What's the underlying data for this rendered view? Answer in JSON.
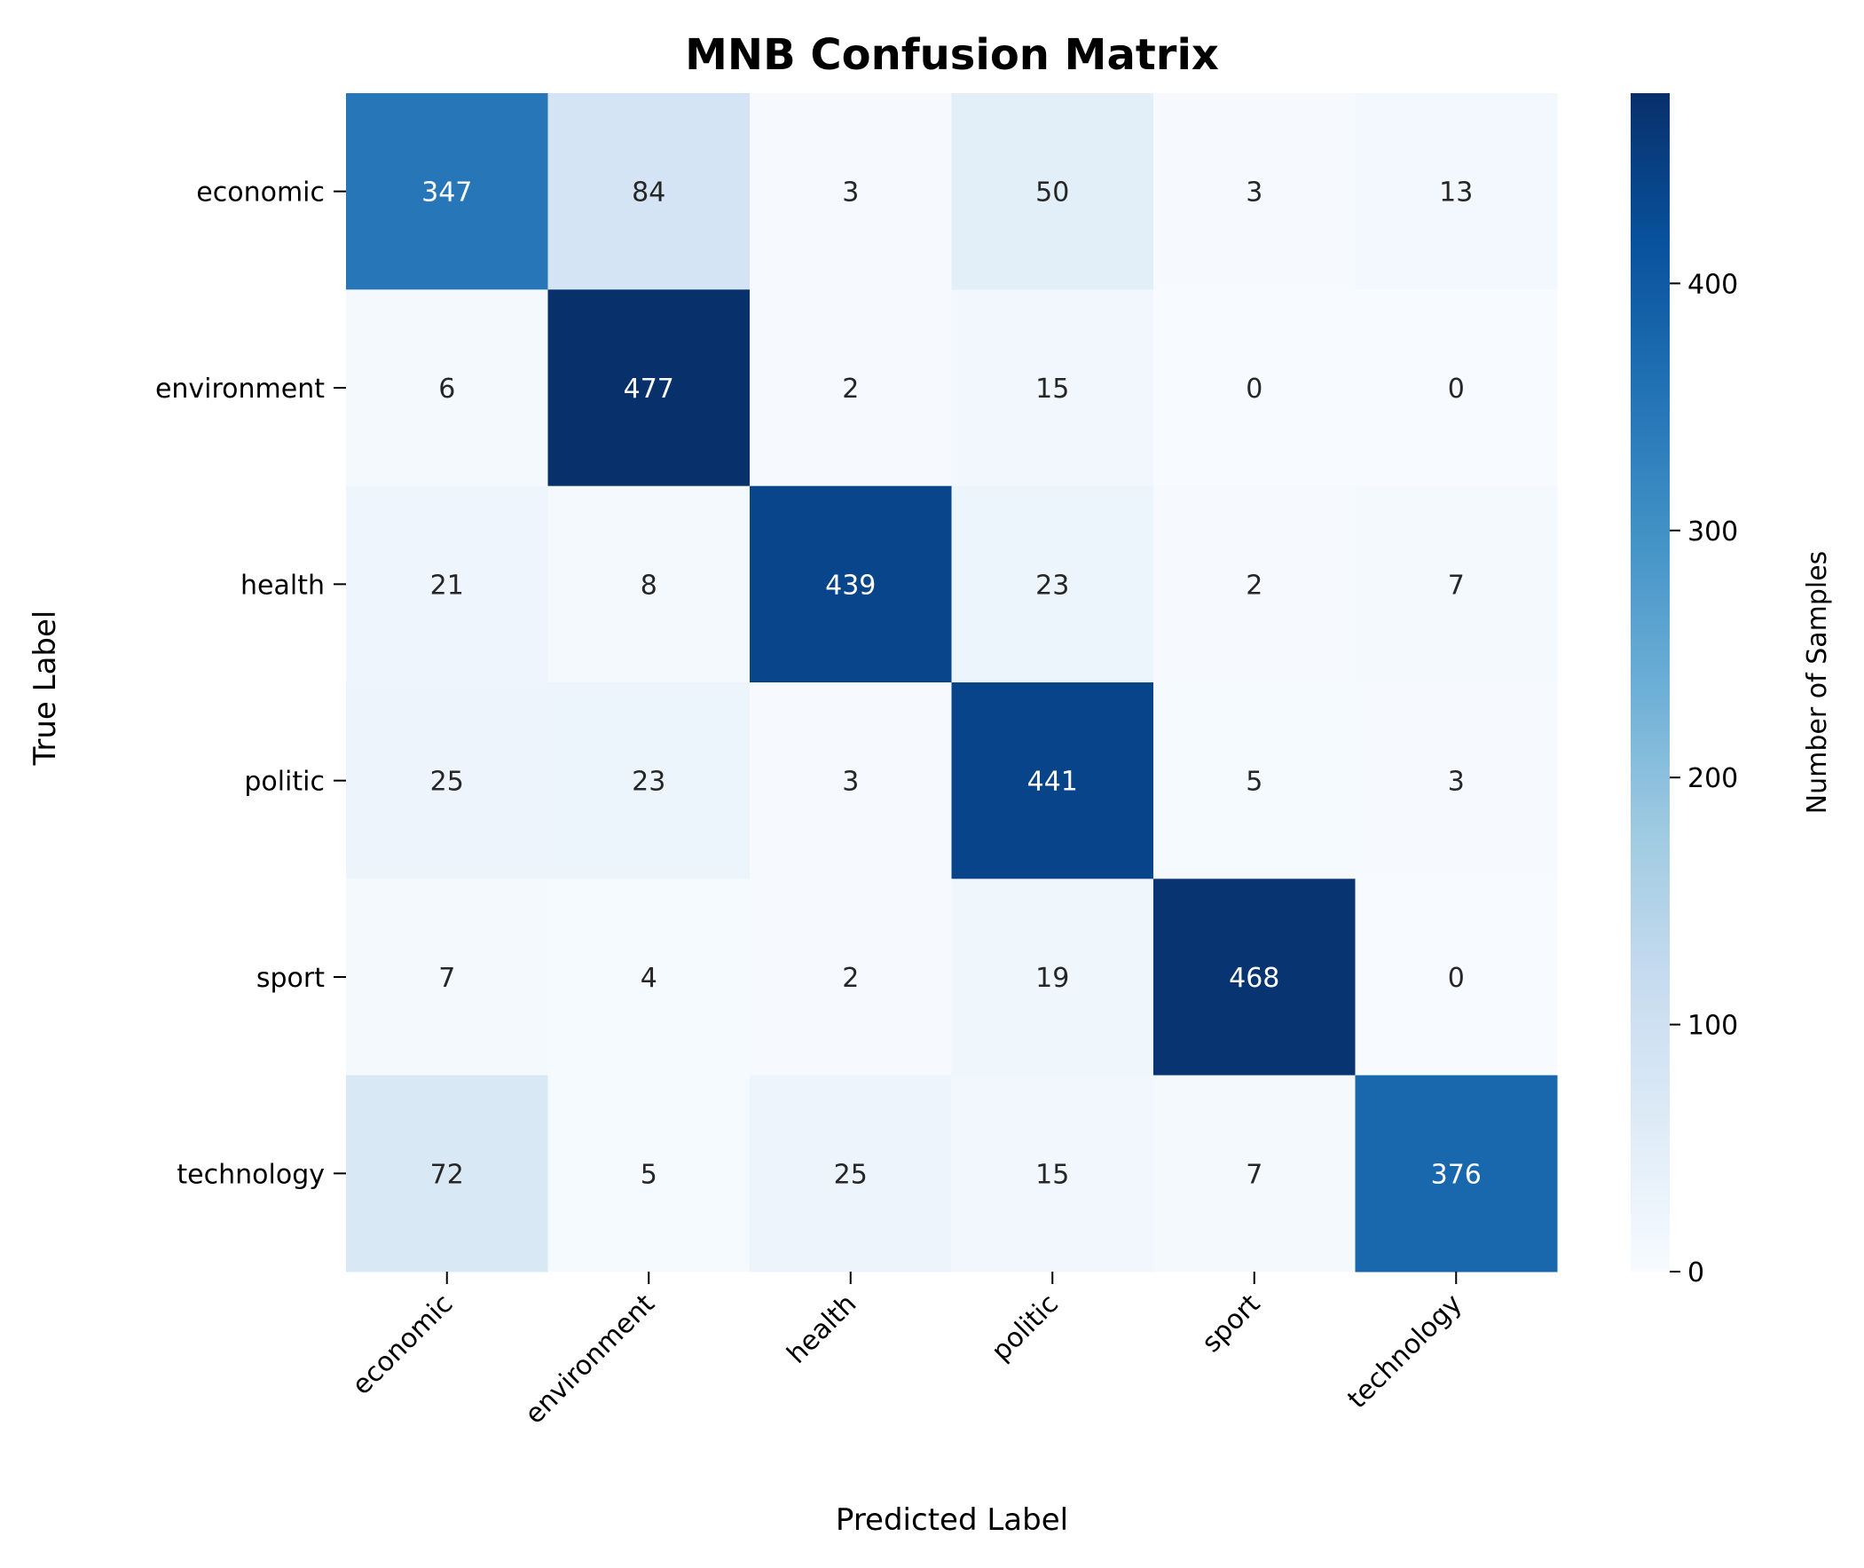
{
  "chart_data": {
    "type": "heatmap",
    "title": "MNB Confusion Matrix",
    "xlabel": "Predicted Label",
    "ylabel": "True Label",
    "x_categories": [
      "economic",
      "environment",
      "health",
      "politic",
      "sport",
      "technology"
    ],
    "y_categories": [
      "economic",
      "environment",
      "health",
      "politic",
      "sport",
      "technology"
    ],
    "values": [
      [
        347,
        84,
        3,
        50,
        3,
        13
      ],
      [
        6,
        477,
        2,
        15,
        0,
        0
      ],
      [
        21,
        8,
        439,
        23,
        2,
        7
      ],
      [
        25,
        23,
        3,
        441,
        5,
        3
      ],
      [
        7,
        4,
        2,
        19,
        468,
        0
      ],
      [
        72,
        5,
        25,
        15,
        7,
        376
      ]
    ],
    "colormap": "Blues",
    "vmin": 0,
    "vmax": 477,
    "colorbar": {
      "label": "Number of Samples",
      "ticks": [
        0,
        100,
        200,
        300,
        400
      ]
    },
    "grid": false,
    "legend": "colorbar-right"
  }
}
